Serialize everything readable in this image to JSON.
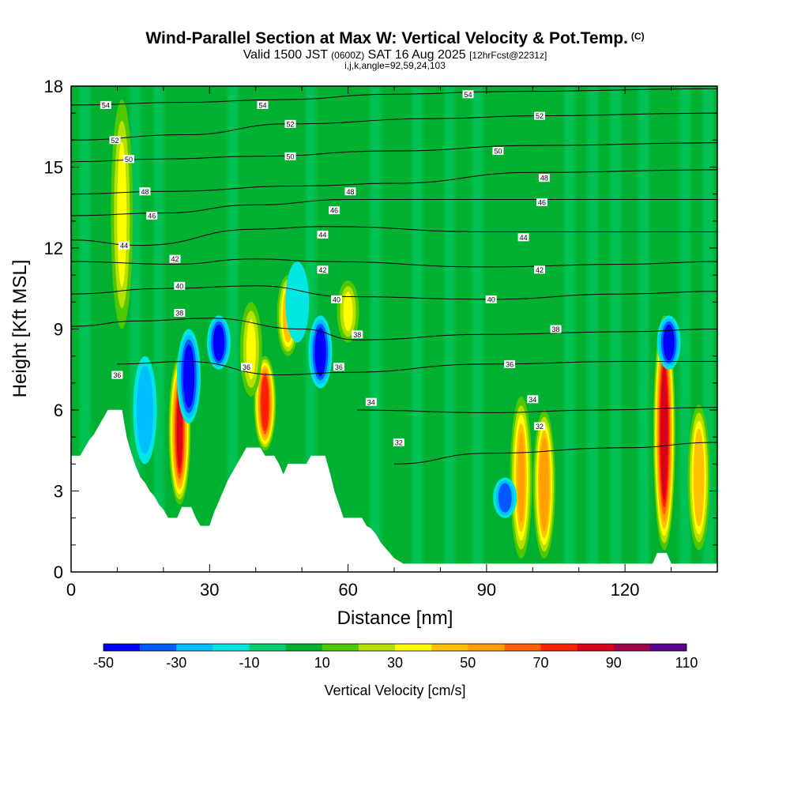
{
  "header": {
    "title": "Wind-Parallel Section at Max W: Vertical Velocity & Pot.Temp.",
    "copyright": "(C)",
    "valid_a": "Valid 1500 JST",
    "valid_utc": "(0600Z)",
    "valid_b": "SAT 16 Aug 2025",
    "forecast": "[12hrFcst@2231z]",
    "indices": "i,j,k,angle=92,59,24,103"
  },
  "chart_data": {
    "type": "heatmap",
    "title": "Wind-Parallel Section at Max W: Vertical Velocity & Pot.Temp.",
    "xlabel": "Distance [nm]",
    "ylabel": "Height [Kft MSL]",
    "xlim": [
      0,
      140
    ],
    "ylim": [
      0,
      18
    ],
    "xticks": [
      0,
      30,
      60,
      90,
      120
    ],
    "yticks": [
      0,
      3,
      6,
      9,
      12,
      15,
      18
    ],
    "colorbar": {
      "label": "Vertical Velocity [cm/s]",
      "tick_labels": [
        -50,
        -30,
        -10,
        10,
        30,
        50,
        70,
        90,
        110
      ],
      "bins": [
        -50,
        -40,
        -30,
        -20,
        -10,
        0,
        10,
        20,
        30,
        40,
        50,
        60,
        70,
        80,
        90,
        100,
        110
      ],
      "colors": [
        "#0000ff",
        "#005aff",
        "#00bfff",
        "#00e6e0",
        "#00d070",
        "#00b030",
        "#4fc800",
        "#b5e000",
        "#ffff00",
        "#ffc000",
        "#ffa000",
        "#ff6000",
        "#ff2000",
        "#d8001a",
        "#a0004a",
        "#5a0090"
      ]
    },
    "terrain": [
      [
        0,
        4.3
      ],
      [
        2,
        4.3
      ],
      [
        3,
        4.6
      ],
      [
        4,
        4.9
      ],
      [
        5,
        5.1
      ],
      [
        6,
        5.4
      ],
      [
        7,
        5.7
      ],
      [
        8,
        6.0
      ],
      [
        11,
        6.0
      ],
      [
        12,
        5.0
      ],
      [
        13,
        4.4
      ],
      [
        14,
        3.9
      ],
      [
        15,
        3.5
      ],
      [
        16,
        3.3
      ],
      [
        17,
        3.0
      ],
      [
        18,
        2.8
      ],
      [
        19,
        2.5
      ],
      [
        20,
        2.3
      ],
      [
        21,
        2.0
      ],
      [
        23,
        2.0
      ],
      [
        24,
        2.4
      ],
      [
        26,
        2.4
      ],
      [
        27,
        2.0
      ],
      [
        28,
        1.7
      ],
      [
        30,
        1.7
      ],
      [
        31,
        2.2
      ],
      [
        32,
        2.6
      ],
      [
        33,
        3.0
      ],
      [
        34,
        3.4
      ],
      [
        35,
        3.7
      ],
      [
        36,
        4.0
      ],
      [
        37,
        4.3
      ],
      [
        38,
        4.6
      ],
      [
        41,
        4.6
      ],
      [
        42,
        4.3
      ],
      [
        44,
        4.3
      ],
      [
        45,
        4.0
      ],
      [
        46,
        3.6
      ],
      [
        47,
        4.0
      ],
      [
        51,
        4.0
      ],
      [
        52,
        4.3
      ],
      [
        55,
        4.3
      ],
      [
        56,
        3.7
      ],
      [
        57,
        3.0
      ],
      [
        58,
        2.5
      ],
      [
        59,
        2.0
      ],
      [
        63,
        2.0
      ],
      [
        64,
        1.7
      ],
      [
        65,
        1.6
      ],
      [
        66,
        1.4
      ],
      [
        67,
        1.1
      ],
      [
        68,
        0.9
      ],
      [
        69,
        0.7
      ],
      [
        70,
        0.5
      ],
      [
        72,
        0.3
      ],
      [
        126,
        0.3
      ],
      [
        127,
        0.7
      ],
      [
        129,
        0.7
      ],
      [
        130,
        0.3
      ],
      [
        140,
        0.3
      ]
    ],
    "vertical_velocity_features": [
      {
        "x": 23.5,
        "z_min": 2.5,
        "z_max": 8.0,
        "peak_cms": 80
      },
      {
        "x": 42,
        "z_min": 4.5,
        "z_max": 8.0,
        "peak_cms": 75
      },
      {
        "x": 47,
        "z_min": 8.0,
        "z_max": 11.0,
        "peak_cms": 45
      },
      {
        "x": 39,
        "z_min": 6.5,
        "z_max": 10.0,
        "peak_cms": 30
      },
      {
        "x": 60,
        "z_min": 8.5,
        "z_max": 10.8,
        "peak_cms": 30
      },
      {
        "x": 11,
        "z_min": 9.0,
        "z_max": 17.5,
        "peak_cms": 30
      },
      {
        "x": 97.5,
        "z_min": 0.5,
        "z_max": 6.5,
        "peak_cms": 50
      },
      {
        "x": 102.5,
        "z_min": 0.5,
        "z_max": 6.0,
        "peak_cms": 55
      },
      {
        "x": 128.5,
        "z_min": 0.8,
        "z_max": 9.5,
        "peak_cms": 85
      },
      {
        "x": 136,
        "z_min": 0.8,
        "z_max": 6.2,
        "peak_cms": 45
      },
      {
        "x": 16,
        "z_min": 4.0,
        "z_max": 8.0,
        "peak_cms": -25
      },
      {
        "x": 25.5,
        "z_min": 5.5,
        "z_max": 9.0,
        "peak_cms": -45
      },
      {
        "x": 32,
        "z_min": 7.5,
        "z_max": 9.5,
        "peak_cms": -45
      },
      {
        "x": 54,
        "z_min": 6.8,
        "z_max": 9.5,
        "peak_cms": -45
      },
      {
        "x": 49,
        "z_min": 8.5,
        "z_max": 11.5,
        "peak_cms": -20
      },
      {
        "x": 94,
        "z_min": 2.0,
        "z_max": 3.5,
        "peak_cms": -40
      },
      {
        "x": 129.5,
        "z_min": 7.5,
        "z_max": 9.5,
        "peak_cms": -45
      }
    ],
    "potential_temperature_contours": [
      {
        "label": 32,
        "points": [
          [
            70,
            4.0
          ],
          [
            90,
            4.4
          ],
          [
            120,
            4.6
          ],
          [
            140,
            4.8
          ]
        ]
      },
      {
        "label": 34,
        "points": [
          [
            62,
            6.0
          ],
          [
            90,
            5.9
          ],
          [
            115,
            6.0
          ],
          [
            140,
            6.1
          ]
        ]
      },
      {
        "label": 36,
        "points": [
          [
            10,
            7.7
          ],
          [
            25,
            7.8
          ],
          [
            45,
            7.3
          ],
          [
            60,
            7.4
          ],
          [
            90,
            7.7
          ],
          [
            120,
            7.8
          ],
          [
            140,
            7.8
          ]
        ]
      },
      {
        "label": 38,
        "points": [
          [
            0,
            9.1
          ],
          [
            15,
            9.3
          ],
          [
            30,
            9.4
          ],
          [
            50,
            9.0
          ],
          [
            62,
            8.6
          ],
          [
            90,
            8.8
          ],
          [
            120,
            8.9
          ],
          [
            140,
            9.0
          ]
        ]
      },
      {
        "label": 40,
        "points": [
          [
            0,
            10.3
          ],
          [
            20,
            10.5
          ],
          [
            40,
            10.6
          ],
          [
            60,
            10.2
          ],
          [
            90,
            10.1
          ],
          [
            120,
            10.3
          ],
          [
            140,
            10.4
          ]
        ]
      },
      {
        "label": 42,
        "points": [
          [
            0,
            11.5
          ],
          [
            22,
            11.4
          ],
          [
            40,
            11.6
          ],
          [
            55,
            11.5
          ],
          [
            90,
            11.3
          ],
          [
            120,
            11.4
          ],
          [
            140,
            11.5
          ]
        ]
      },
      {
        "label": 44,
        "points": [
          [
            0,
            12.3
          ],
          [
            15,
            12.1
          ],
          [
            40,
            12.7
          ],
          [
            55,
            12.8
          ],
          [
            90,
            12.6
          ],
          [
            120,
            12.6
          ],
          [
            140,
            12.6
          ]
        ]
      },
      {
        "label": 46,
        "points": [
          [
            0,
            13.2
          ],
          [
            20,
            13.3
          ],
          [
            40,
            13.6
          ],
          [
            60,
            13.8
          ],
          [
            100,
            13.8
          ],
          [
            140,
            13.8
          ]
        ]
      },
      {
        "label": 48,
        "points": [
          [
            0,
            14.0
          ],
          [
            20,
            14.1
          ],
          [
            50,
            14.3
          ],
          [
            70,
            14.4
          ],
          [
            100,
            14.8
          ],
          [
            140,
            14.9
          ]
        ]
      },
      {
        "label": 50,
        "points": [
          [
            0,
            15.2
          ],
          [
            20,
            15.3
          ],
          [
            40,
            15.4
          ],
          [
            70,
            15.6
          ],
          [
            100,
            15.8
          ],
          [
            140,
            15.9
          ]
        ]
      },
      {
        "label": 52,
        "points": [
          [
            0,
            16.0
          ],
          [
            25,
            16.2
          ],
          [
            47,
            16.6
          ],
          [
            80,
            16.8
          ],
          [
            100,
            16.9
          ],
          [
            140,
            17.0
          ]
        ]
      },
      {
        "label": 54,
        "points": [
          [
            0,
            17.3
          ],
          [
            25,
            17.4
          ],
          [
            45,
            17.5
          ],
          [
            70,
            17.7
          ],
          [
            95,
            17.8
          ],
          [
            140,
            17.9
          ]
        ]
      }
    ],
    "contour_labels": [
      {
        "text": "54",
        "x": 7.5,
        "y": 17.3
      },
      {
        "text": "54",
        "x": 41.5,
        "y": 17.3
      },
      {
        "text": "54",
        "x": 86,
        "y": 17.7
      },
      {
        "text": "52",
        "x": 9.5,
        "y": 16.0
      },
      {
        "text": "52",
        "x": 47.5,
        "y": 16.6
      },
      {
        "text": "52",
        "x": 101.5,
        "y": 16.9
      },
      {
        "text": "50",
        "x": 12.5,
        "y": 15.3
      },
      {
        "text": "50",
        "x": 47.5,
        "y": 15.4
      },
      {
        "text": "50",
        "x": 92.5,
        "y": 15.6
      },
      {
        "text": "48",
        "x": 16,
        "y": 14.1
      },
      {
        "text": "48",
        "x": 60.5,
        "y": 14.1
      },
      {
        "text": "48",
        "x": 102.5,
        "y": 14.6
      },
      {
        "text": "46",
        "x": 17.5,
        "y": 13.2
      },
      {
        "text": "46",
        "x": 57,
        "y": 13.4
      },
      {
        "text": "46",
        "x": 102,
        "y": 13.7
      },
      {
        "text": "44",
        "x": 11.5,
        "y": 12.1
      },
      {
        "text": "44",
        "x": 54.5,
        "y": 12.5
      },
      {
        "text": "44",
        "x": 98,
        "y": 12.4
      },
      {
        "text": "42",
        "x": 22.5,
        "y": 11.6
      },
      {
        "text": "42",
        "x": 54.5,
        "y": 11.2
      },
      {
        "text": "42",
        "x": 101.5,
        "y": 11.2
      },
      {
        "text": "40",
        "x": 23.5,
        "y": 10.6
      },
      {
        "text": "40",
        "x": 57.5,
        "y": 10.1
      },
      {
        "text": "40",
        "x": 91,
        "y": 10.1
      },
      {
        "text": "38",
        "x": 23.5,
        "y": 9.6
      },
      {
        "text": "38",
        "x": 62,
        "y": 8.8
      },
      {
        "text": "38",
        "x": 105,
        "y": 9.0
      },
      {
        "text": "36",
        "x": 10,
        "y": 7.3
      },
      {
        "text": "36",
        "x": 38,
        "y": 7.6
      },
      {
        "text": "36",
        "x": 58,
        "y": 7.6
      },
      {
        "text": "36",
        "x": 95,
        "y": 7.7
      },
      {
        "text": "34",
        "x": 65,
        "y": 6.3
      },
      {
        "text": "34",
        "x": 100,
        "y": 6.4
      },
      {
        "text": "32",
        "x": 71,
        "y": 4.8
      },
      {
        "text": "32",
        "x": 101.5,
        "y": 5.4
      }
    ]
  }
}
